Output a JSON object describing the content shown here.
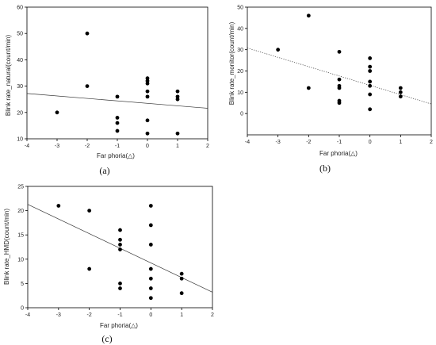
{
  "chart_data": [
    {
      "type": "scatter",
      "panel_label": "(a)",
      "xlabel": "Far phoria(△)",
      "ylabel": "Blink rate_natural(count/min)",
      "xlim": [
        -4,
        2
      ],
      "ylim": [
        10,
        60
      ],
      "xticks": [
        -4,
        -3,
        -2,
        -1,
        0,
        1,
        2
      ],
      "yticks": [
        10,
        20,
        30,
        40,
        50,
        60
      ],
      "grid": false,
      "regression": {
        "style": "solid",
        "x": [
          -4,
          2
        ],
        "y": [
          27.2,
          21.6
        ]
      },
      "points": [
        {
          "x": -3,
          "y": 20
        },
        {
          "x": -2,
          "y": 50
        },
        {
          "x": -2,
          "y": 30
        },
        {
          "x": -1,
          "y": 26
        },
        {
          "x": -1,
          "y": 18
        },
        {
          "x": -1,
          "y": 16
        },
        {
          "x": -1,
          "y": 13
        },
        {
          "x": 0,
          "y": 33
        },
        {
          "x": 0,
          "y": 32
        },
        {
          "x": 0,
          "y": 31
        },
        {
          "x": 0,
          "y": 28
        },
        {
          "x": 0,
          "y": 26
        },
        {
          "x": 0,
          "y": 17
        },
        {
          "x": 0,
          "y": 12
        },
        {
          "x": 1,
          "y": 28
        },
        {
          "x": 1,
          "y": 26
        },
        {
          "x": 1,
          "y": 25
        },
        {
          "x": 1,
          "y": 12
        }
      ]
    },
    {
      "type": "scatter",
      "panel_label": "(b)",
      "xlabel": "Far phoria(△)",
      "ylabel": "Blink rate_monitor(count/min)",
      "xlim": [
        -4,
        2
      ],
      "ylim": [
        -10,
        50
      ],
      "xticks": [
        -4,
        -3,
        -2,
        -1,
        0,
        1,
        2
      ],
      "yticks": [
        0,
        10,
        20,
        30,
        40,
        50
      ],
      "grid": false,
      "regression": {
        "style": "dotted",
        "x": [
          -4,
          2
        ],
        "y": [
          30.8,
          4.5
        ]
      },
      "points": [
        {
          "x": -3,
          "y": 30
        },
        {
          "x": -2,
          "y": 46
        },
        {
          "x": -2,
          "y": 12
        },
        {
          "x": -1,
          "y": 29
        },
        {
          "x": -1,
          "y": 16
        },
        {
          "x": -1,
          "y": 13
        },
        {
          "x": -1,
          "y": 12
        },
        {
          "x": -1,
          "y": 6
        },
        {
          "x": -1,
          "y": 5
        },
        {
          "x": 0,
          "y": 26
        },
        {
          "x": 0,
          "y": 22
        },
        {
          "x": 0,
          "y": 20
        },
        {
          "x": 0,
          "y": 15
        },
        {
          "x": 0,
          "y": 13
        },
        {
          "x": 0,
          "y": 9
        },
        {
          "x": 0,
          "y": 2
        },
        {
          "x": 1,
          "y": 12
        },
        {
          "x": 1,
          "y": 10
        },
        {
          "x": 1,
          "y": 8
        }
      ]
    },
    {
      "type": "scatter",
      "panel_label": "(c)",
      "xlabel": "Far phoria(△)",
      "ylabel": "Blink rate_HMD(count/min)",
      "xlim": [
        -4,
        2
      ],
      "ylim": [
        0,
        25
      ],
      "xticks": [
        -4,
        -3,
        -2,
        -1,
        0,
        1,
        2
      ],
      "yticks": [
        0,
        5,
        10,
        15,
        20,
        25
      ],
      "grid": false,
      "regression": {
        "style": "solid",
        "x": [
          -4,
          2
        ],
        "y": [
          21.3,
          3.2
        ]
      },
      "points": [
        {
          "x": -3,
          "y": 21
        },
        {
          "x": -2,
          "y": 20
        },
        {
          "x": -2,
          "y": 8
        },
        {
          "x": -1,
          "y": 16
        },
        {
          "x": -1,
          "y": 14
        },
        {
          "x": -1,
          "y": 13
        },
        {
          "x": -1,
          "y": 12
        },
        {
          "x": -1,
          "y": 5
        },
        {
          "x": -1,
          "y": 4
        },
        {
          "x": 0,
          "y": 21
        },
        {
          "x": 0,
          "y": 17
        },
        {
          "x": 0,
          "y": 13
        },
        {
          "x": 0,
          "y": 8
        },
        {
          "x": 0,
          "y": 6
        },
        {
          "x": 0,
          "y": 4
        },
        {
          "x": 0,
          "y": 2
        },
        {
          "x": 1,
          "y": 7
        },
        {
          "x": 1,
          "y": 6
        },
        {
          "x": 1,
          "y": 3
        }
      ]
    }
  ]
}
